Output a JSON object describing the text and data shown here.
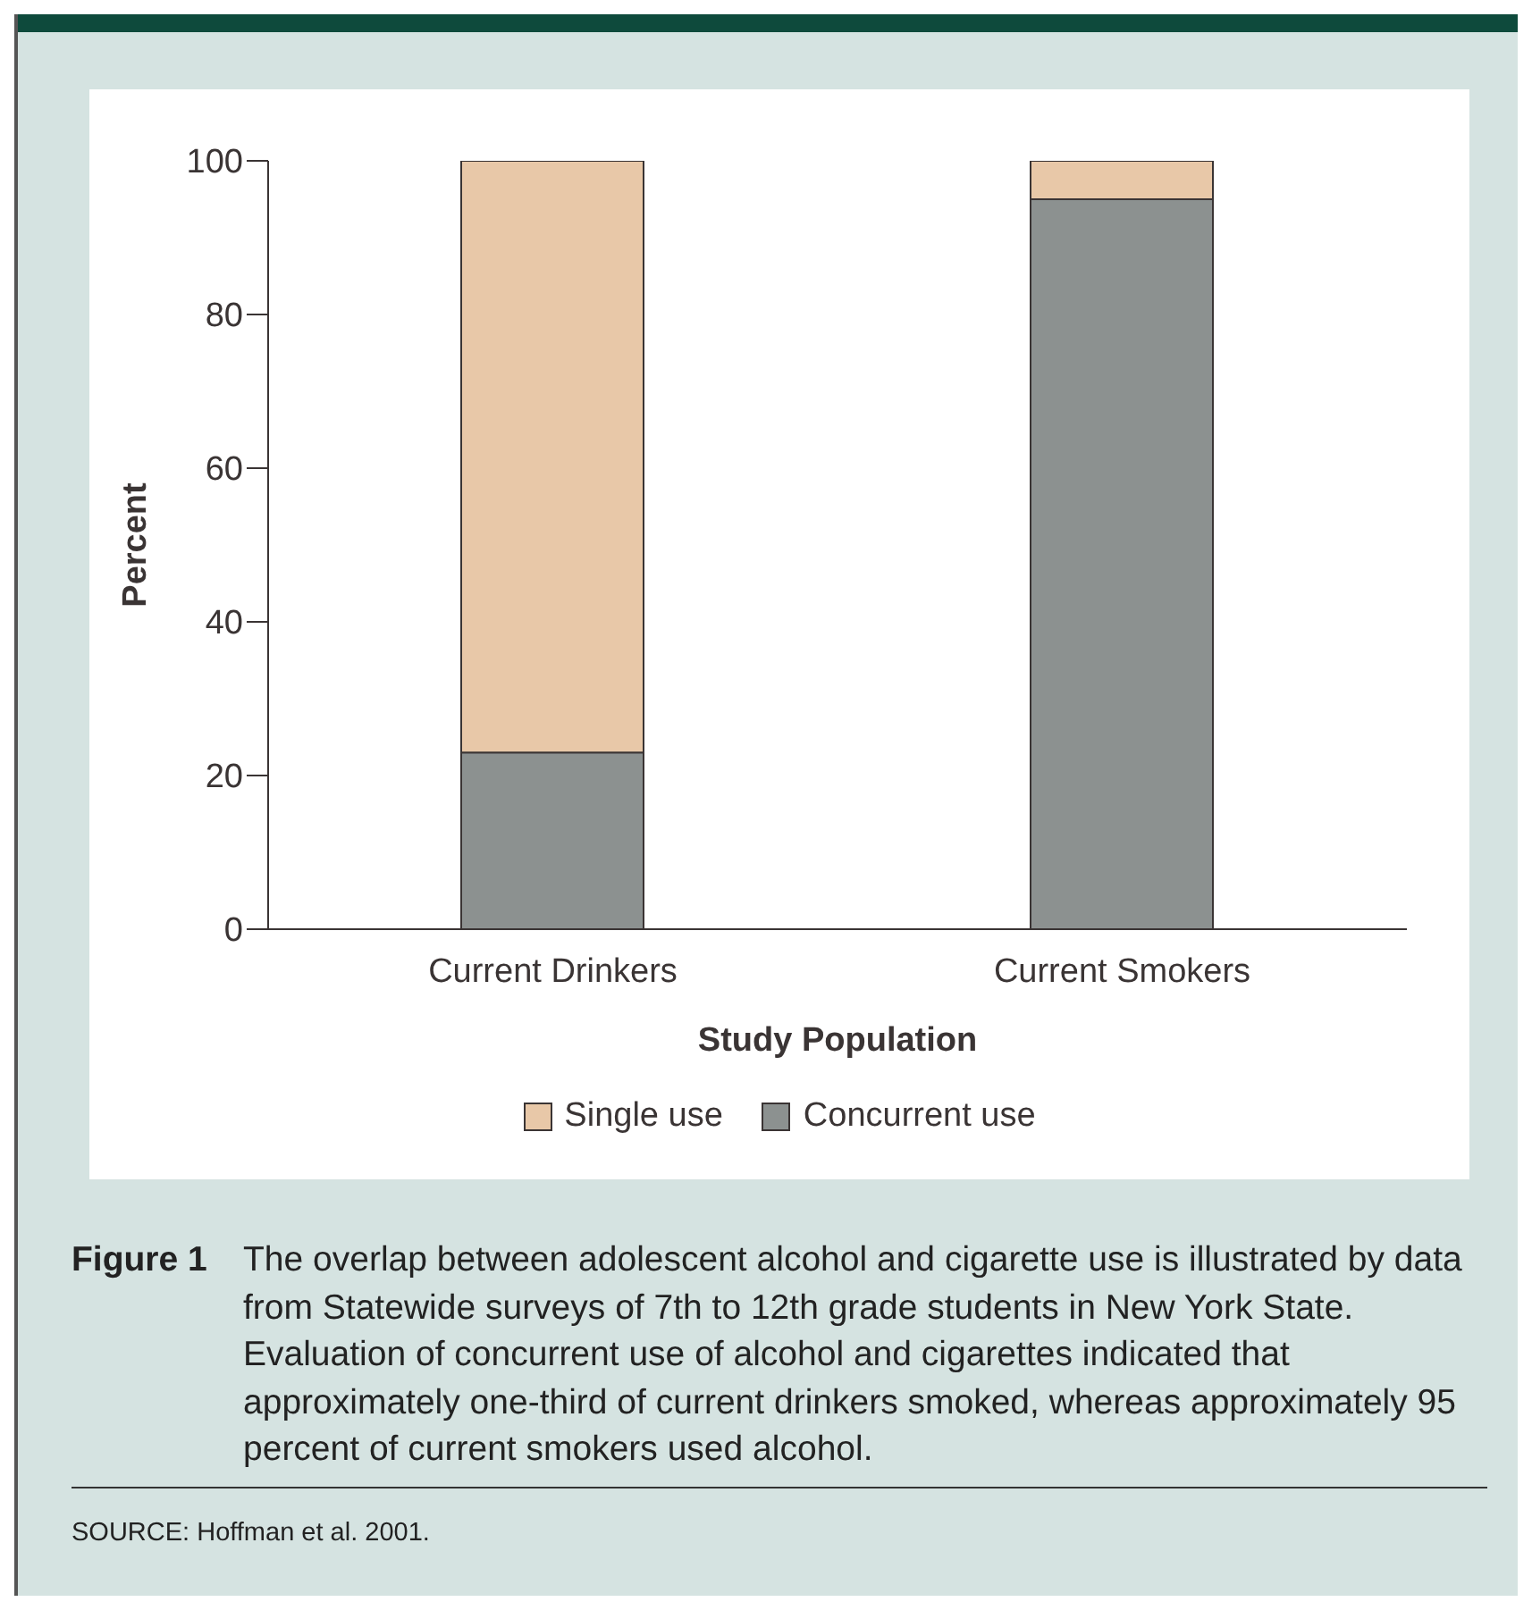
{
  "chart_data": {
    "type": "bar",
    "stacked": true,
    "xlabel": "Study Population",
    "ylabel": "Percent",
    "categories": [
      "Current Drinkers",
      "Current Smokers"
    ],
    "series": [
      {
        "name": "Concurrent use",
        "color": "#8c9190",
        "values": [
          23,
          95
        ]
      },
      {
        "name": "Single use",
        "color": "#e8c8a8",
        "values": [
          77,
          5
        ]
      }
    ],
    "ylim": [
      0,
      100
    ],
    "yticks": [
      0,
      20,
      40,
      60,
      80,
      100
    ],
    "grid": false,
    "legend": "bottom",
    "annotations": [
      "Figure 1",
      "The overlap between adolescent alcohol and cigarette use is illustrated by data from Statewide surveys of 7th to 12th grade students in New York State. Evaluation of concurrent use of alcohol and cigarettes indicated that approximately one-third of current drinkers smoked, whereas approximately 95 percent of current smokers used alcohol.",
      "SOURCE: Hoffman et al. 2001."
    ]
  }
}
